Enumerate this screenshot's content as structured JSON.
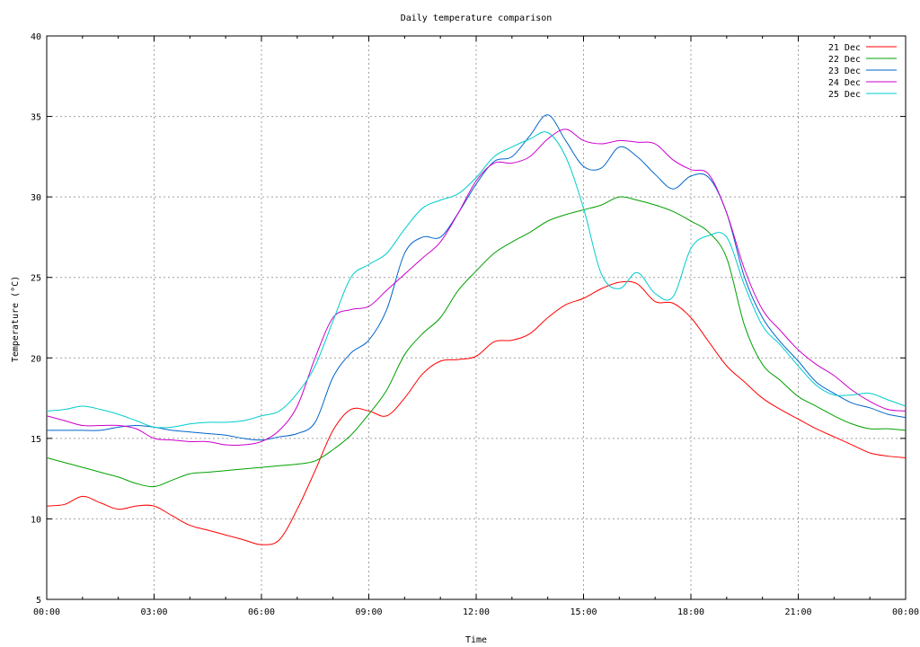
{
  "chart_data": {
    "type": "line",
    "title": "Daily temperature comparison",
    "xlabel": "Time",
    "ylabel": "Temperature (°C)",
    "xlim": [
      0,
      24
    ],
    "ylim": [
      5,
      40
    ],
    "grid": true,
    "legend_position": "top-right",
    "x_ticks": [
      {
        "value": 0,
        "label": "00:00"
      },
      {
        "value": 3,
        "label": "03:00"
      },
      {
        "value": 6,
        "label": "06:00"
      },
      {
        "value": 9,
        "label": "09:00"
      },
      {
        "value": 12,
        "label": "12:00"
      },
      {
        "value": 15,
        "label": "15:00"
      },
      {
        "value": 18,
        "label": "18:00"
      },
      {
        "value": 21,
        "label": "21:00"
      },
      {
        "value": 24,
        "label": "00:00"
      }
    ],
    "y_ticks": [
      {
        "value": 5,
        "label": "5"
      },
      {
        "value": 10,
        "label": "10"
      },
      {
        "value": 15,
        "label": "15"
      },
      {
        "value": 20,
        "label": "20"
      },
      {
        "value": 25,
        "label": "25"
      },
      {
        "value": 30,
        "label": "30"
      },
      {
        "value": 35,
        "label": "35"
      },
      {
        "value": 40,
        "label": "40"
      }
    ],
    "series": [
      {
        "name": "21 Dec",
        "color": "#ff0000",
        "x": [
          0,
          0.5,
          1,
          1.5,
          2,
          2.5,
          3,
          3.5,
          4,
          4.5,
          5,
          5.5,
          6,
          6.5,
          7,
          7.5,
          8,
          8.5,
          9,
          9.5,
          10,
          10.5,
          11,
          11.5,
          12,
          12.5,
          13,
          13.5,
          14,
          14.5,
          15,
          15.5,
          16,
          16.5,
          17,
          17.5,
          18,
          18.5,
          19,
          19.5,
          20,
          20.5,
          21,
          21.5,
          22,
          22.5,
          23,
          23.5,
          24
        ],
        "y": [
          10.8,
          10.9,
          11.4,
          11,
          10.6,
          10.8,
          10.8,
          10.2,
          9.6,
          9.3,
          9,
          8.7,
          8.4,
          8.7,
          10.6,
          13,
          15.5,
          16.8,
          16.7,
          16.4,
          17.5,
          19,
          19.8,
          19.9,
          20.1,
          21,
          21.1,
          21.5,
          22.5,
          23.3,
          23.7,
          24.3,
          24.7,
          24.6,
          23.5,
          23.4,
          22.5,
          21,
          19.5,
          18.5,
          17.5,
          16.8,
          16.2,
          15.6,
          15.1,
          14.6,
          14.1,
          13.9,
          13.8
        ]
      },
      {
        "name": "22 Dec",
        "color": "#00a000",
        "x": [
          0,
          0.5,
          1,
          1.5,
          2,
          2.5,
          3,
          3.5,
          4,
          4.5,
          5,
          5.5,
          6,
          6.5,
          7,
          7.5,
          8,
          8.5,
          9,
          9.5,
          10,
          10.5,
          11,
          11.5,
          12,
          12.5,
          13,
          13.5,
          14,
          14.5,
          15,
          15.5,
          16,
          16.5,
          17,
          17.5,
          18,
          18.5,
          19,
          19.5,
          20,
          20.5,
          21,
          21.5,
          22,
          22.5,
          23,
          23.5,
          24
        ],
        "y": [
          13.8,
          13.5,
          13.2,
          12.9,
          12.6,
          12.2,
          12.0,
          12.4,
          12.8,
          12.9,
          13.0,
          13.1,
          13.2,
          13.3,
          13.4,
          13.6,
          14.3,
          15.2,
          16.5,
          18,
          20.2,
          21.5,
          22.5,
          24.2,
          25.4,
          26.5,
          27.2,
          27.8,
          28.5,
          28.9,
          29.2,
          29.5,
          30.0,
          29.8,
          29.5,
          29.1,
          28.5,
          27.8,
          26.2,
          22,
          19.6,
          18.6,
          17.6,
          17,
          16.4,
          15.9,
          15.6,
          15.6,
          15.5
        ]
      },
      {
        "name": "23 Dec",
        "color": "#0066cc",
        "x": [
          0,
          0.5,
          1,
          1.5,
          2,
          2.5,
          3,
          3.5,
          4,
          4.5,
          5,
          5.5,
          6,
          6.5,
          7,
          7.5,
          8,
          8.5,
          9,
          9.5,
          10,
          10.5,
          11,
          11.5,
          12,
          12.5,
          13,
          13.5,
          14,
          14.5,
          15,
          15.5,
          16,
          16.5,
          17,
          17.5,
          18,
          18.5,
          19,
          19.5,
          20,
          20.5,
          21,
          21.5,
          22,
          22.5,
          23,
          23.5,
          24
        ],
        "y": [
          15.5,
          15.5,
          15.5,
          15.5,
          15.7,
          15.8,
          15.7,
          15.5,
          15.4,
          15.3,
          15.2,
          15.0,
          14.9,
          15.1,
          15.3,
          16,
          18.8,
          20.3,
          21.1,
          23,
          26.5,
          27.5,
          27.5,
          29,
          30.8,
          32.2,
          32.5,
          33.8,
          35.1,
          33.5,
          31.9,
          31.8,
          33.1,
          32.5,
          31.4,
          30.5,
          31.3,
          31.2,
          29,
          25,
          22.5,
          21,
          19.8,
          18.5,
          17.8,
          17.2,
          16.9,
          16.5,
          16.3
        ]
      },
      {
        "name": "24 Dec",
        "color": "#cc00cc",
        "x": [
          0,
          0.5,
          1,
          1.5,
          2,
          2.5,
          3,
          3.5,
          4,
          4.5,
          5,
          5.5,
          6,
          6.5,
          7,
          7.5,
          8,
          8.5,
          9,
          9.5,
          10,
          10.5,
          11,
          11.5,
          12,
          12.5,
          13,
          13.5,
          14,
          14.5,
          15,
          15.5,
          16,
          16.5,
          17,
          17.5,
          18,
          18.5,
          19,
          19.5,
          20,
          20.5,
          21,
          21.5,
          22,
          22.5,
          23,
          23.5,
          24
        ],
        "y": [
          16.4,
          16.1,
          15.8,
          15.8,
          15.8,
          15.6,
          15.0,
          14.9,
          14.8,
          14.8,
          14.6,
          14.6,
          14.8,
          15.5,
          17,
          20,
          22.5,
          23,
          23.2,
          24.2,
          25.2,
          26.2,
          27.2,
          29,
          31,
          32.1,
          32.1,
          32.5,
          33.6,
          34.2,
          33.5,
          33.3,
          33.5,
          33.4,
          33.3,
          32.3,
          31.7,
          31.4,
          29,
          25.5,
          23,
          21.7,
          20.5,
          19.6,
          18.9,
          18,
          17.3,
          16.8,
          16.7
        ]
      },
      {
        "name": "25 Dec",
        "color": "#00cccc",
        "x": [
          0,
          0.5,
          1,
          1.5,
          2,
          2.5,
          3,
          3.5,
          4,
          4.5,
          5,
          5.5,
          6,
          6.5,
          7,
          7.5,
          8,
          8.5,
          9,
          9.5,
          10,
          10.5,
          11,
          11.5,
          12,
          12.5,
          13,
          13.5,
          14,
          14.5,
          15,
          15.5,
          16,
          16.5,
          17,
          17.5,
          18,
          18.5,
          19,
          19.5,
          20,
          20.5,
          21,
          21.5,
          22,
          22.5,
          23,
          23.5,
          24
        ],
        "y": [
          16.7,
          16.8,
          17,
          16.8,
          16.5,
          16.1,
          15.7,
          15.7,
          15.9,
          16,
          16,
          16.1,
          16.4,
          16.7,
          17.8,
          19.5,
          22.3,
          25,
          25.8,
          26.5,
          28,
          29.3,
          29.8,
          30.2,
          31.2,
          32.5,
          33.1,
          33.6,
          34,
          32.5,
          29.3,
          25.2,
          24.3,
          25.3,
          24,
          23.8,
          26.8,
          27.6,
          27.5,
          24.5,
          22,
          20.8,
          19.5,
          18.3,
          17.7,
          17.7,
          17.8,
          17.4,
          17
        ]
      }
    ]
  }
}
